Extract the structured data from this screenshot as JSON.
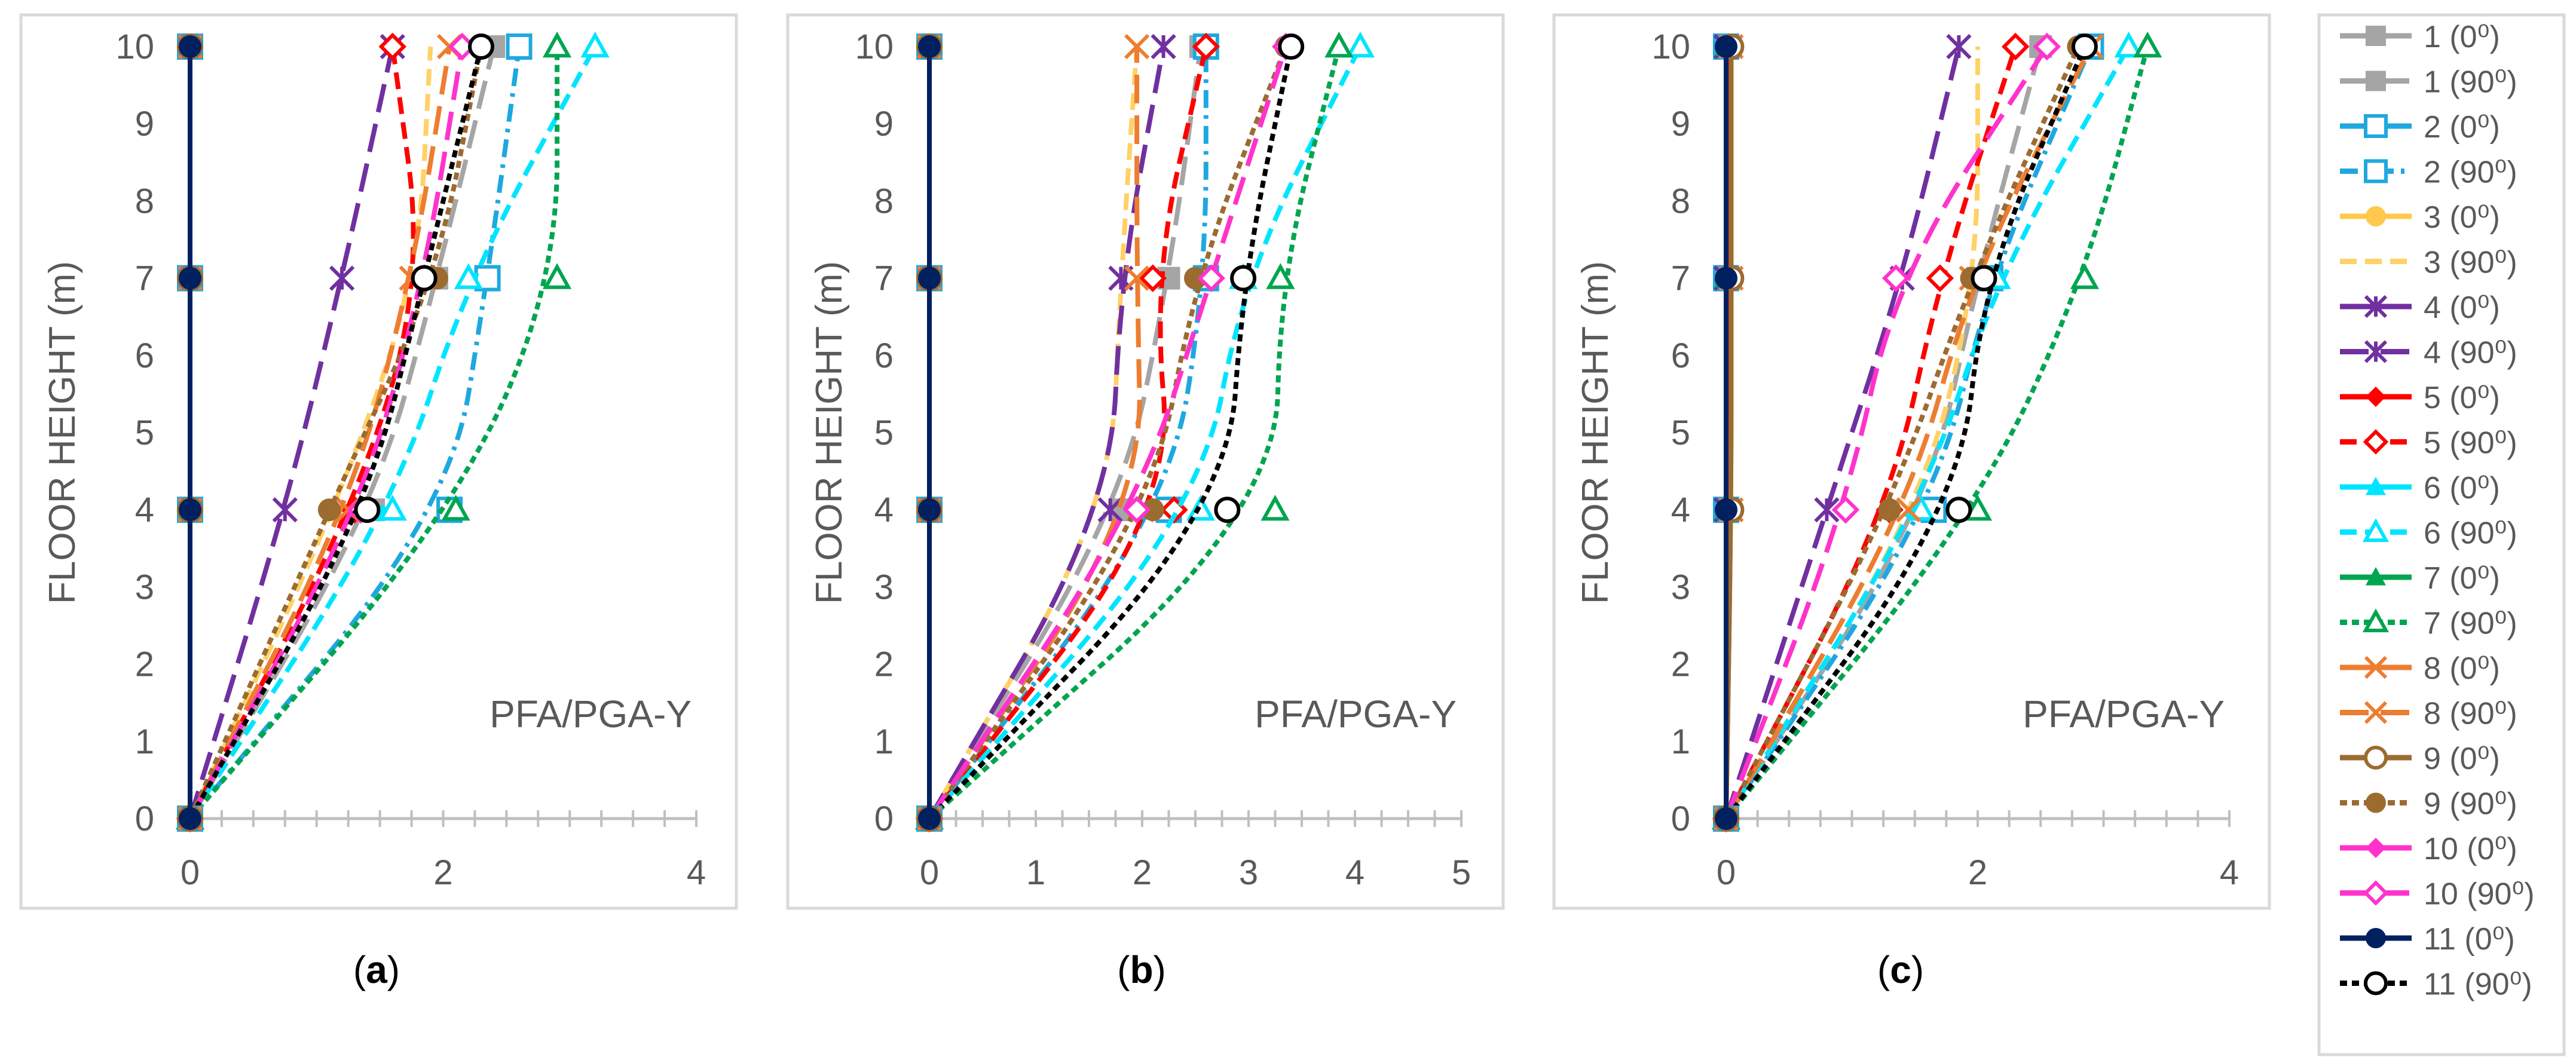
{
  "chart_data": [
    {
      "panel": "(a)",
      "panel_letter": "a",
      "type": "line",
      "ylabel": "FLOOR HEIGHT (m)",
      "annotation": "PFA/PGA-Y",
      "xlim": [
        0,
        4
      ],
      "ylim": [
        0,
        10
      ],
      "xticks": [
        "0",
        "2",
        "4"
      ],
      "yticks": [
        "0",
        "1",
        "2",
        "3",
        "4",
        "5",
        "6",
        "7",
        "8",
        "9",
        "10"
      ],
      "y": [
        0,
        4,
        7,
        10
      ],
      "series": [
        {
          "name": "1 (0⁰)",
          "x": [
            0,
            0,
            0,
            0
          ]
        },
        {
          "name": "1 (90⁰)",
          "x": [
            0,
            1.45,
            1.95,
            2.4
          ]
        },
        {
          "name": "2 (0⁰)",
          "x": [
            0,
            0,
            0,
            0
          ]
        },
        {
          "name": "2 (90⁰)",
          "x": [
            0,
            2.05,
            2.35,
            2.6
          ]
        },
        {
          "name": "3 (0⁰)",
          "x": [
            0,
            0,
            0,
            0
          ]
        },
        {
          "name": "3 (90⁰)",
          "x": [
            0,
            1.15,
            1.8,
            1.9
          ]
        },
        {
          "name": "4 (0⁰)",
          "x": [
            0,
            0,
            0,
            0
          ]
        },
        {
          "name": "4 (90⁰)",
          "x": [
            0,
            0.75,
            1.2,
            1.6
          ]
        },
        {
          "name": "5 (0⁰)",
          "x": [
            0,
            0,
            0,
            0
          ]
        },
        {
          "name": "5 (90⁰)",
          "x": [
            0,
            1.3,
            1.85,
            1.6
          ]
        },
        {
          "name": "6 (0⁰)",
          "x": [
            0,
            0,
            0,
            0
          ]
        },
        {
          "name": "6 (90⁰)",
          "x": [
            0,
            1.6,
            2.2,
            3.2
          ]
        },
        {
          "name": "7 (0⁰)",
          "x": [
            0,
            0,
            0,
            0
          ]
        },
        {
          "name": "7 (90⁰)",
          "x": [
            0,
            2.1,
            2.9,
            2.9
          ]
        },
        {
          "name": "8 (0⁰)",
          "x": [
            0,
            0,
            0,
            0
          ]
        },
        {
          "name": "8 (90⁰)",
          "x": [
            0,
            1.25,
            1.75,
            2.05
          ]
        },
        {
          "name": "9 (0⁰)",
          "x": [
            0,
            0,
            0,
            0
          ]
        },
        {
          "name": "9 (90⁰)",
          "x": [
            0,
            1.1,
            1.95,
            2.3
          ]
        },
        {
          "name": "10 (0⁰)",
          "x": [
            0,
            0,
            0,
            0
          ]
        },
        {
          "name": "10 (90⁰)",
          "x": [
            0,
            1.35,
            1.85,
            2.15
          ]
        },
        {
          "name": "11 (0⁰)",
          "x": [
            0,
            0,
            0,
            0
          ]
        },
        {
          "name": "11 (90⁰)",
          "x": [
            0,
            1.4,
            1.85,
            2.3
          ]
        }
      ]
    },
    {
      "panel": "(b)",
      "panel_letter": "b",
      "type": "line",
      "ylabel": "FLOOR HEIGHT (m)",
      "annotation": "PFA/PGA-Y",
      "xlim": [
        0,
        5
      ],
      "ylim": [
        0,
        10
      ],
      "xticks": [
        "0",
        "1",
        "2",
        "3",
        "4",
        "5"
      ],
      "yticks": [
        "0",
        "1",
        "2",
        "3",
        "4",
        "5",
        "6",
        "7",
        "8",
        "9",
        "10"
      ],
      "y": [
        0,
        4,
        7,
        10
      ],
      "series": [
        {
          "name": "1 (0⁰)",
          "x": [
            0,
            0,
            0,
            0
          ]
        },
        {
          "name": "1 (90⁰)",
          "x": [
            0,
            1.8,
            2.25,
            2.55
          ]
        },
        {
          "name": "2 (0⁰)",
          "x": [
            0,
            0,
            0,
            0
          ]
        },
        {
          "name": "2 (90⁰)",
          "x": [
            0,
            2.25,
            2.6,
            2.6
          ]
        },
        {
          "name": "3 (0⁰)",
          "x": [
            0,
            0,
            0,
            0
          ]
        },
        {
          "name": "3 (90⁰)",
          "x": [
            0,
            1.7,
            1.8,
            1.95
          ]
        },
        {
          "name": "4 (0⁰)",
          "x": [
            0,
            0,
            0,
            0
          ]
        },
        {
          "name": "4 (90⁰)",
          "x": [
            0,
            1.7,
            1.8,
            2.2
          ]
        },
        {
          "name": "5 (0⁰)",
          "x": [
            0,
            0,
            0,
            0
          ]
        },
        {
          "name": "5 (90⁰)",
          "x": [
            0,
            2.3,
            2.1,
            2.6
          ]
        },
        {
          "name": "6 (0⁰)",
          "x": [
            0,
            0,
            0,
            0
          ]
        },
        {
          "name": "6 (90⁰)",
          "x": [
            0,
            2.55,
            2.95,
            4.05
          ]
        },
        {
          "name": "7 (0⁰)",
          "x": [
            0,
            0,
            0,
            0
          ]
        },
        {
          "name": "7 (90⁰)",
          "x": [
            0,
            3.25,
            3.3,
            3.85
          ]
        },
        {
          "name": "8 (0⁰)",
          "x": [
            0,
            0,
            0,
            0
          ]
        },
        {
          "name": "8 (90⁰)",
          "x": [
            0,
            2.0,
            1.95,
            1.95
          ]
        },
        {
          "name": "9 (0⁰)",
          "x": [
            0,
            0,
            0,
            0
          ]
        },
        {
          "name": "9 (90⁰)",
          "x": [
            0,
            2.1,
            2.5,
            3.35
          ]
        },
        {
          "name": "10 (0⁰)",
          "x": [
            0,
            0,
            0,
            0
          ]
        },
        {
          "name": "10 (90⁰)",
          "x": [
            0,
            1.95,
            2.65,
            3.35
          ]
        },
        {
          "name": "11 (0⁰)",
          "x": [
            0,
            0,
            0,
            0
          ]
        },
        {
          "name": "11 (90⁰)",
          "x": [
            0,
            2.8,
            2.95,
            3.4
          ]
        }
      ]
    },
    {
      "panel": "(c)",
      "panel_letter": "c",
      "type": "line",
      "ylabel": "FLOOR HEIGHT (m)",
      "annotation": "PFA/PGA-Y",
      "xlim": [
        0,
        4
      ],
      "ylim": [
        0,
        10
      ],
      "xticks": [
        "0",
        "2",
        "4"
      ],
      "yticks": [
        "0",
        "1",
        "2",
        "3",
        "4",
        "5",
        "6",
        "7",
        "8",
        "9",
        "10"
      ],
      "y": [
        0,
        4,
        7,
        10
      ],
      "series": [
        {
          "name": "1 (0⁰)",
          "x": [
            0,
            0,
            0,
            0
          ]
        },
        {
          "name": "1 (90⁰)",
          "x": [
            0,
            1.6,
            2.0,
            2.5
          ]
        },
        {
          "name": "2 (0⁰)",
          "x": [
            0,
            0,
            0,
            0
          ]
        },
        {
          "name": "2 (90⁰)",
          "x": [
            0,
            1.65,
            2.1,
            2.9
          ]
        },
        {
          "name": "3 (0⁰)",
          "x": [
            0,
            0,
            0,
            0
          ]
        },
        {
          "name": "3 (90⁰)",
          "x": [
            0,
            1.55,
            2.0,
            2.0
          ]
        },
        {
          "name": "4 (0⁰)",
          "x": [
            0,
            0,
            0,
            0
          ]
        },
        {
          "name": "4 (90⁰)",
          "x": [
            0,
            0.8,
            1.4,
            1.85
          ]
        },
        {
          "name": "5 (0⁰)",
          "x": [
            0,
            0.02,
            0.02,
            0.02
          ]
        },
        {
          "name": "5 (90⁰)",
          "x": [
            0,
            1.3,
            1.7,
            2.3
          ]
        },
        {
          "name": "6 (0⁰)",
          "x": [
            0,
            0,
            0,
            0
          ]
        },
        {
          "name": "6 (90⁰)",
          "x": [
            0,
            1.55,
            2.15,
            3.2
          ]
        },
        {
          "name": "7 (0⁰)",
          "x": [
            0,
            0,
            0,
            0
          ]
        },
        {
          "name": "7 (90⁰)",
          "x": [
            0,
            2.0,
            2.85,
            3.35
          ]
        },
        {
          "name": "8 (0⁰)",
          "x": [
            0,
            0.04,
            0.04,
            0.04
          ]
        },
        {
          "name": "8 (90⁰)",
          "x": [
            0,
            1.45,
            1.95,
            2.9
          ]
        },
        {
          "name": "9 (0⁰)",
          "x": [
            0,
            0.04,
            0.04,
            0.04
          ]
        },
        {
          "name": "9 (90⁰)",
          "x": [
            0,
            1.3,
            1.95,
            2.8
          ]
        },
        {
          "name": "10 (0⁰)",
          "x": [
            0,
            0,
            0,
            0
          ]
        },
        {
          "name": "10 (90⁰)",
          "x": [
            0,
            0.95,
            1.35,
            2.55
          ]
        },
        {
          "name": "11 (0⁰)",
          "x": [
            0,
            0,
            0,
            0
          ]
        },
        {
          "name": "11 (90⁰)",
          "x": [
            0,
            1.85,
            2.05,
            2.85
          ]
        }
      ]
    }
  ],
  "legend": {
    "placement": "right",
    "items": [
      {
        "name": "1 (0⁰)",
        "color": "#A5A5A5",
        "dash": "solid",
        "marker": "square-filled"
      },
      {
        "name": "1 (90⁰)",
        "color": "#A5A5A5",
        "dash": "longdash",
        "marker": "square-filled"
      },
      {
        "name": "2 (0⁰)",
        "color": "#1FA8E0",
        "dash": "solid",
        "marker": "square-open"
      },
      {
        "name": "2 (90⁰)",
        "color": "#1FA8E0",
        "dash": "dashdot",
        "marker": "square-open"
      },
      {
        "name": "3 (0⁰)",
        "color": "#FFC94D",
        "dash": "solid",
        "marker": "circle-filled"
      },
      {
        "name": "3 (90⁰)",
        "color": "#FFD166",
        "dash": "dash",
        "marker": "none"
      },
      {
        "name": "4 (0⁰)",
        "color": "#7030A0",
        "dash": "solid",
        "marker": "star"
      },
      {
        "name": "4 (90⁰)",
        "color": "#7030A0",
        "dash": "longdash",
        "marker": "star"
      },
      {
        "name": "5 (0⁰)",
        "color": "#FF0000",
        "dash": "solid",
        "marker": "diamond-filled"
      },
      {
        "name": "5 (90⁰)",
        "color": "#FF0000",
        "dash": "dash",
        "marker": "diamond-open"
      },
      {
        "name": "6 (0⁰)",
        "color": "#00E5FF",
        "dash": "solid",
        "marker": "triangle-filled"
      },
      {
        "name": "6 (90⁰)",
        "color": "#00E5FF",
        "dash": "dash",
        "marker": "triangle-open"
      },
      {
        "name": "7 (0⁰)",
        "color": "#00A550",
        "dash": "solid",
        "marker": "triangle-filled"
      },
      {
        "name": "7 (90⁰)",
        "color": "#00A550",
        "dash": "dot",
        "marker": "triangle-open"
      },
      {
        "name": "8 (0⁰)",
        "color": "#ED7D31",
        "dash": "solid",
        "marker": "x"
      },
      {
        "name": "8 (90⁰)",
        "color": "#ED7D31",
        "dash": "longdash",
        "marker": "x"
      },
      {
        "name": "9 (0⁰)",
        "color": "#9C6B30",
        "dash": "solid",
        "marker": "circle-open"
      },
      {
        "name": "9 (90⁰)",
        "color": "#9C6B30",
        "dash": "dot",
        "marker": "circle-filled"
      },
      {
        "name": "10 (0⁰)",
        "color": "#FF33CC",
        "dash": "solid",
        "marker": "diamond-filled"
      },
      {
        "name": "10 (90⁰)",
        "color": "#FF33CC",
        "dash": "longdash",
        "marker": "diamond-open"
      },
      {
        "name": "11 (0⁰)",
        "color": "#002060",
        "dash": "solid",
        "marker": "circle-filled"
      },
      {
        "name": "11 (90⁰)",
        "color": "#000000",
        "dash": "dot",
        "marker": "circle-open"
      }
    ]
  },
  "colors": {
    "frame": "#D9D9D9",
    "axis": "#BFBFBF",
    "text": "#595959",
    "caption": "#000000"
  }
}
